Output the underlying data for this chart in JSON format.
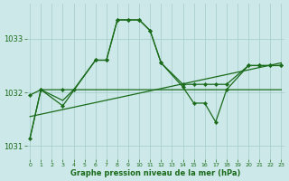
{
  "bg_color": "#cce8e8",
  "grid_color": "#aad0d0",
  "line_color": "#1a6b1a",
  "xlabel": "Graphe pression niveau de la mer (hPa)",
  "ylim": [
    1030.75,
    1033.65
  ],
  "xlim": [
    -0.3,
    23.3
  ],
  "yticks": [
    1031,
    1032,
    1033
  ],
  "xticks": [
    0,
    1,
    2,
    3,
    4,
    5,
    6,
    7,
    8,
    9,
    10,
    11,
    12,
    13,
    14,
    15,
    16,
    17,
    18,
    19,
    20,
    21,
    22,
    23
  ],
  "line1_x": [
    0,
    1,
    3,
    4,
    5,
    6,
    7,
    8,
    9,
    10,
    11,
    12,
    13,
    14,
    15,
    16,
    17,
    18,
    19,
    20,
    21,
    22,
    23
  ],
  "line1_y": [
    1031.15,
    1032.05,
    1031.85,
    1032.05,
    1032.05,
    1032.05,
    1032.05,
    1032.05,
    1032.05,
    1032.05,
    1032.05,
    1032.05,
    1032.05,
    1032.05,
    1032.05,
    1032.05,
    1032.05,
    1032.05,
    1032.05,
    1032.05,
    1032.05,
    1032.05,
    1032.05
  ],
  "line2_x": [
    0,
    23
  ],
  "line2_y": [
    1031.55,
    1032.55
  ],
  "line3_x": [
    0,
    1,
    3,
    4,
    6,
    7,
    8,
    9,
    10,
    11,
    12,
    14,
    15,
    16,
    17,
    18,
    20,
    21,
    22,
    23
  ],
  "line3_y": [
    1031.95,
    1032.05,
    1032.05,
    1032.05,
    1032.6,
    1032.6,
    1033.35,
    1033.35,
    1033.35,
    1033.15,
    1032.55,
    1032.15,
    1032.15,
    1032.15,
    1032.15,
    1032.15,
    1032.5,
    1032.5,
    1032.5,
    1032.5
  ],
  "line4_x": [
    0,
    1,
    3,
    6,
    7,
    8,
    9,
    10,
    11,
    12,
    14,
    15,
    16,
    17,
    18,
    20,
    21,
    22,
    23
  ],
  "line4_y": [
    1031.15,
    1032.05,
    1031.75,
    1032.6,
    1032.6,
    1033.35,
    1033.35,
    1033.35,
    1033.15,
    1032.55,
    1032.1,
    1031.8,
    1031.8,
    1031.45,
    1032.05,
    1032.5,
    1032.5,
    1032.5,
    1032.5
  ]
}
